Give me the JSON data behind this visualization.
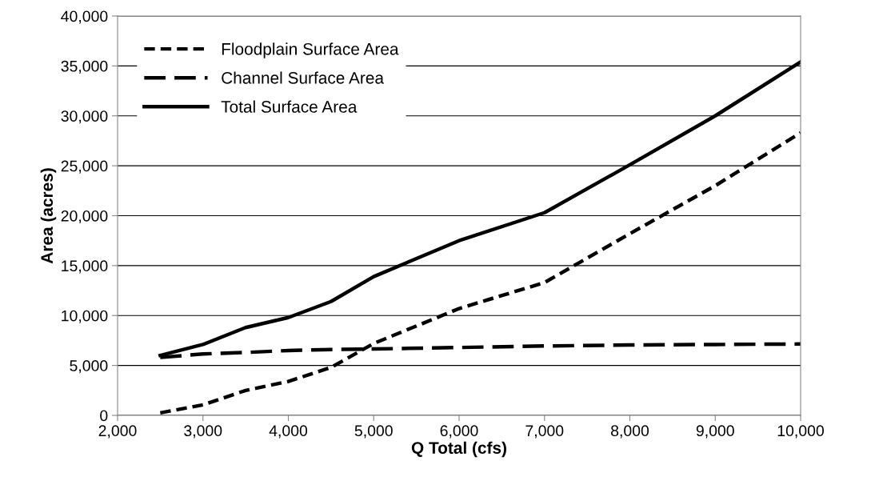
{
  "chart_data": {
    "type": "line",
    "xlabel": "Q Total (cfs)",
    "ylabel": "Area (acres)",
    "x": [
      2500,
      3000,
      3500,
      4000,
      4500,
      5000,
      6000,
      7000,
      8000,
      9000,
      10000
    ],
    "series": [
      {
        "name": "Floodplain Surface Area",
        "color": "#000000",
        "line_style": "dashed",
        "values": [
          250,
          1050,
          2500,
          3400,
          4800,
          7200,
          10700,
          13300,
          18200,
          23000,
          28300
        ]
      },
      {
        "name": "Channel Surface Area",
        "color": "#000000",
        "line_style": "dashed",
        "values": [
          5800,
          6150,
          6300,
          6500,
          6600,
          6650,
          6800,
          6950,
          7050,
          7100,
          7150
        ]
      },
      {
        "name": "Total Surface Area",
        "color": "#000000",
        "line_style": "solid",
        "values": [
          6000,
          7100,
          8800,
          9800,
          11400,
          13900,
          17500,
          20300,
          25100,
          30000,
          35400
        ]
      }
    ],
    "xlim": [
      2000,
      10000
    ],
    "xticks": [
      {
        "value": 2000,
        "label": "2,000"
      },
      {
        "value": 3000,
        "label": "3,000"
      },
      {
        "value": 4000,
        "label": "4,000"
      },
      {
        "value": 5000,
        "label": "5,000"
      },
      {
        "value": 6000,
        "label": "6,000"
      },
      {
        "value": 7000,
        "label": "7,000"
      },
      {
        "value": 8000,
        "label": "8,000"
      },
      {
        "value": 9000,
        "label": "9,000"
      },
      {
        "value": 10000,
        "label": "10,000"
      }
    ],
    "ylim": [
      0,
      40000
    ],
    "yticks": [
      0,
      {
        "value": 5000,
        "label": "5,000"
      },
      {
        "value": 10000,
        "label": "10,000"
      },
      {
        "value": 15000,
        "label": "15,000"
      },
      {
        "value": 20000,
        "label": "20,000"
      },
      {
        "value": 25000,
        "label": "25,000"
      },
      {
        "value": 30000,
        "label": "30,000"
      },
      {
        "value": 35000,
        "label": "35,000"
      },
      {
        "value": 40000,
        "label": "40,000"
      }
    ],
    "grid": "y",
    "legend": "top left",
    "marker": "none"
  }
}
